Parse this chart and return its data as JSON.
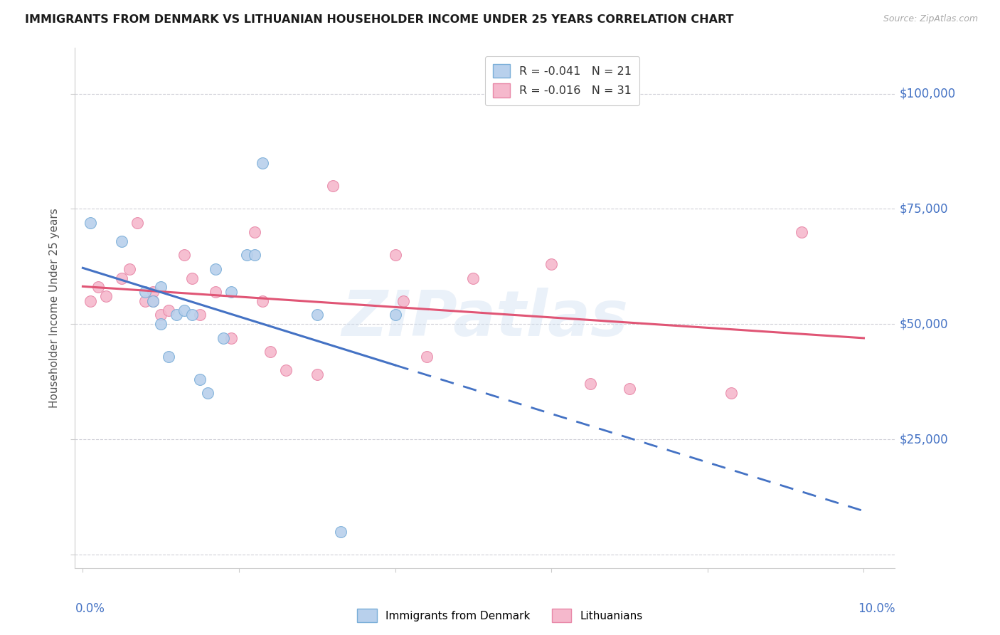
{
  "title": "IMMIGRANTS FROM DENMARK VS LITHUANIAN HOUSEHOLDER INCOME UNDER 25 YEARS CORRELATION CHART",
  "source": "Source: ZipAtlas.com",
  "ylabel": "Householder Income Under 25 years",
  "xlim": [
    -0.001,
    0.104
  ],
  "ylim": [
    -3000,
    110000
  ],
  "yticks": [
    0,
    25000,
    50000,
    75000,
    100000
  ],
  "ytick_labels": [
    "",
    "$25,000",
    "$50,000",
    "$75,000",
    "$100,000"
  ],
  "xticks": [
    0.0,
    0.02,
    0.04,
    0.06,
    0.08,
    0.1
  ],
  "background_color": "#ffffff",
  "watermark": "ZIPatlas",
  "r1": "-0.041",
  "n1": "21",
  "r2": "-0.016",
  "n2": "31",
  "denmark_fill": "#b8d0ec",
  "denmark_edge": "#7aaed8",
  "lithuanian_fill": "#f5b8cc",
  "lithuanian_edge": "#e888a8",
  "trend_dk_color": "#4472c4",
  "trend_lt_color": "#e05575",
  "right_label_color": "#4472c4",
  "grid_color": "#d0d0d8",
  "marker_size": 130,
  "denmark_x": [
    0.001,
    0.005,
    0.008,
    0.009,
    0.01,
    0.01,
    0.011,
    0.012,
    0.013,
    0.014,
    0.015,
    0.016,
    0.017,
    0.018,
    0.019,
    0.021,
    0.022,
    0.023,
    0.03,
    0.033,
    0.04
  ],
  "denmark_y": [
    72000,
    68000,
    57000,
    55000,
    58000,
    50000,
    43000,
    52000,
    53000,
    52000,
    38000,
    35000,
    62000,
    47000,
    57000,
    65000,
    65000,
    85000,
    52000,
    5000,
    52000
  ],
  "lithuanian_x": [
    0.001,
    0.002,
    0.003,
    0.005,
    0.006,
    0.007,
    0.008,
    0.009,
    0.009,
    0.01,
    0.011,
    0.013,
    0.014,
    0.015,
    0.017,
    0.019,
    0.022,
    0.023,
    0.024,
    0.026,
    0.03,
    0.032,
    0.04,
    0.041,
    0.044,
    0.05,
    0.06,
    0.065,
    0.07,
    0.083,
    0.092
  ],
  "lithuanian_y": [
    55000,
    58000,
    56000,
    60000,
    62000,
    72000,
    55000,
    57000,
    55000,
    52000,
    53000,
    65000,
    60000,
    52000,
    57000,
    47000,
    70000,
    55000,
    44000,
    40000,
    39000,
    80000,
    65000,
    55000,
    43000,
    60000,
    63000,
    37000,
    36000,
    35000,
    70000
  ]
}
